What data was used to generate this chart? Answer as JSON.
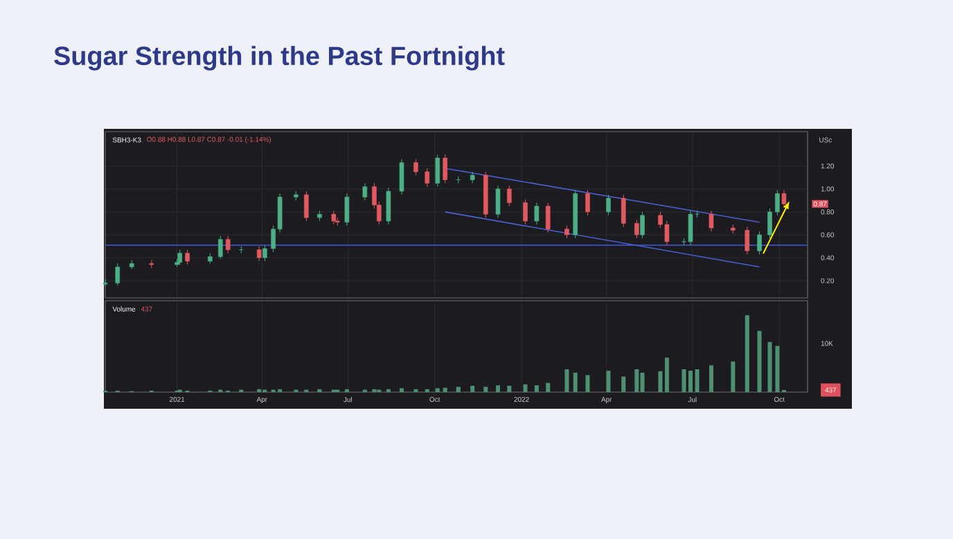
{
  "chart_data": [
    {
      "type": "candlestick",
      "title": "Sugar Strength in the Past Fortnight",
      "x": [
        "2020-10-17",
        "2020-10-30",
        "2020-11-14",
        "2020-12-05",
        "2021-01-01",
        "2021-01-04",
        "2021-01-12",
        "2021-02-05",
        "2021-02-16",
        "2021-02-24",
        "2021-03-10",
        "2021-03-29",
        "2021-04-04",
        "2021-04-13",
        "2021-04-20",
        "2021-05-07",
        "2021-05-18",
        "2021-06-01",
        "2021-06-16",
        "2021-06-20",
        "2021-06-30",
        "2021-07-19",
        "2021-07-29",
        "2021-08-03",
        "2021-08-13",
        "2021-08-27",
        "2021-09-11",
        "2021-09-23",
        "2021-10-04",
        "2021-10-12",
        "2021-10-26",
        "2021-11-10",
        "2021-11-24",
        "2021-12-07",
        "2021-12-19",
        "2022-01-05",
        "2022-01-17",
        "2022-01-29",
        "2022-02-18",
        "2022-02-27",
        "2022-03-12",
        "2022-04-03",
        "2022-04-19",
        "2022-05-03",
        "2022-05-09",
        "2022-05-28",
        "2022-06-04",
        "2022-06-22",
        "2022-06-29",
        "2022-07-06",
        "2022-07-21",
        "2022-08-13",
        "2022-08-28",
        "2022-09-10",
        "2022-09-21",
        "2022-09-29",
        "2022-10-06"
      ],
      "ohlc": [
        [
          0.17,
          0.21,
          0.15,
          0.18
        ],
        [
          0.18,
          0.35,
          0.16,
          0.32
        ],
        [
          0.32,
          0.38,
          0.3,
          0.35
        ],
        [
          0.35,
          0.38,
          0.31,
          0.34
        ],
        [
          0.34,
          0.39,
          0.32,
          0.36
        ],
        [
          0.36,
          0.47,
          0.34,
          0.44
        ],
        [
          0.44,
          0.47,
          0.34,
          0.37
        ],
        [
          0.37,
          0.44,
          0.35,
          0.41
        ],
        [
          0.41,
          0.59,
          0.39,
          0.56
        ],
        [
          0.56,
          0.59,
          0.44,
          0.47
        ],
        [
          0.47,
          0.5,
          0.44,
          0.47
        ],
        [
          0.47,
          0.5,
          0.37,
          0.4
        ],
        [
          0.4,
          0.51,
          0.37,
          0.48
        ],
        [
          0.48,
          0.68,
          0.45,
          0.65
        ],
        [
          0.65,
          0.96,
          0.62,
          0.93
        ],
        [
          0.93,
          0.98,
          0.9,
          0.95
        ],
        [
          0.95,
          0.98,
          0.72,
          0.75
        ],
        [
          0.75,
          0.81,
          0.72,
          0.78
        ],
        [
          0.78,
          0.81,
          0.69,
          0.72
        ],
        [
          0.72,
          0.75,
          0.68,
          0.71
        ],
        [
          0.71,
          0.96,
          0.68,
          0.93
        ],
        [
          0.93,
          1.05,
          0.9,
          1.02
        ],
        [
          1.02,
          1.05,
          0.83,
          0.86
        ],
        [
          0.86,
          0.89,
          0.69,
          0.72
        ],
        [
          0.72,
          1.01,
          0.69,
          0.98
        ],
        [
          0.98,
          1.26,
          0.95,
          1.23
        ],
        [
          1.23,
          1.26,
          1.12,
          1.15
        ],
        [
          1.15,
          1.18,
          1.02,
          1.05
        ],
        [
          1.05,
          1.3,
          1.02,
          1.27
        ],
        [
          1.27,
          1.3,
          1.05,
          1.08
        ],
        [
          1.08,
          1.11,
          1.05,
          1.08
        ],
        [
          1.08,
          1.15,
          1.05,
          1.12
        ],
        [
          1.12,
          1.15,
          0.75,
          0.78
        ],
        [
          0.78,
          1.03,
          0.75,
          1.0
        ],
        [
          1.0,
          1.03,
          0.85,
          0.88
        ],
        [
          0.88,
          0.91,
          0.69,
          0.72
        ],
        [
          0.72,
          0.88,
          0.69,
          0.85
        ],
        [
          0.85,
          0.88,
          0.62,
          0.65
        ],
        [
          0.65,
          0.68,
          0.57,
          0.6
        ],
        [
          0.6,
          0.99,
          0.57,
          0.96
        ],
        [
          0.96,
          0.99,
          0.77,
          0.8
        ],
        [
          0.8,
          0.95,
          0.77,
          0.92
        ],
        [
          0.92,
          0.95,
          0.67,
          0.7
        ],
        [
          0.7,
          0.73,
          0.57,
          0.6
        ],
        [
          0.6,
          0.8,
          0.57,
          0.77
        ],
        [
          0.77,
          0.8,
          0.66,
          0.69
        ],
        [
          0.69,
          0.72,
          0.51,
          0.54
        ],
        [
          0.54,
          0.57,
          0.51,
          0.54
        ],
        [
          0.54,
          0.81,
          0.51,
          0.78
        ],
        [
          0.78,
          0.81,
          0.75,
          0.78
        ],
        [
          0.78,
          0.81,
          0.63,
          0.66
        ],
        [
          0.66,
          0.69,
          0.61,
          0.64
        ],
        [
          0.64,
          0.67,
          0.43,
          0.46
        ],
        [
          0.46,
          0.63,
          0.43,
          0.6
        ],
        [
          0.6,
          0.83,
          0.57,
          0.8
        ],
        [
          0.8,
          0.99,
          0.77,
          0.96
        ],
        [
          0.96,
          0.99,
          0.84,
          0.87
        ]
      ],
      "series": [
        {
          "type": "line",
          "x": [
            "2021-10-12",
            "2022-09-10"
          ],
          "values": [
            1.18,
            0.71
          ],
          "color": "#4a5fd0"
        },
        {
          "type": "line",
          "x": [
            "2021-10-12",
            "2022-09-10"
          ],
          "values": [
            0.8,
            0.32
          ],
          "color": "#4a5fd0"
        }
      ],
      "ref_lines": [
        {
          "axis": "y",
          "value": 0.51,
          "color": "#3b4fc0"
        }
      ],
      "xlim": [
        "2020-10-17",
        "2022-10-31"
      ],
      "xticks": [
        {
          "value": "2021-01-01",
          "label": null
        },
        {
          "value": "2021-04-01",
          "label": null
        },
        {
          "value": "2021-07-01",
          "label": null
        },
        {
          "value": "2021-10-01",
          "label": null
        },
        {
          "value": "2022-01-01",
          "label": null
        },
        {
          "value": "2022-04-01",
          "label": null
        },
        {
          "value": "2022-07-01",
          "label": null
        },
        {
          "value": "2022-10-01",
          "label": null
        }
      ],
      "ylim": [
        0.05,
        1.5
      ],
      "yticks": [
        {
          "value": 0.2,
          "label": "0.20"
        },
        {
          "value": 0.4,
          "label": "0.40"
        },
        {
          "value": 0.6,
          "label": "0.60"
        },
        {
          "value": 0.8,
          "label": "0.80"
        },
        {
          "value": 1.0,
          "label": "1.00"
        },
        {
          "value": 1.2,
          "label": "1.20"
        }
      ],
      "tick_labels": "y",
      "grid": true,
      "annotations": [
        "SBH3-K3",
        "O0.88 H0.88 L0.87 C0.87 -0.01 (-1.14%)",
        "USc",
        "0.87"
      ]
    },
    {
      "type": "bar",
      "color": "#4f8f72",
      "x": [
        "2020-10-17",
        "2020-10-30",
        "2020-11-14",
        "2020-12-05",
        "2021-01-01",
        "2021-01-04",
        "2021-01-12",
        "2021-02-05",
        "2021-02-16",
        "2021-02-24",
        "2021-03-10",
        "2021-03-29",
        "2021-04-04",
        "2021-04-13",
        "2021-04-20",
        "2021-05-07",
        "2021-05-18",
        "2021-06-01",
        "2021-06-16",
        "2021-06-20",
        "2021-06-30",
        "2021-07-19",
        "2021-07-29",
        "2021-08-03",
        "2021-08-13",
        "2021-08-27",
        "2021-09-11",
        "2021-09-23",
        "2021-10-04",
        "2021-10-12",
        "2021-10-26",
        "2021-11-10",
        "2021-11-24",
        "2021-12-07",
        "2021-12-19",
        "2022-01-05",
        "2022-01-17",
        "2022-01-29",
        "2022-02-18",
        "2022-02-27",
        "2022-03-12",
        "2022-04-03",
        "2022-04-19",
        "2022-05-03",
        "2022-05-09",
        "2022-05-28",
        "2022-06-04",
        "2022-06-22",
        "2022-06-29",
        "2022-07-06",
        "2022-07-21",
        "2022-08-13",
        "2022-08-28",
        "2022-09-10",
        "2022-09-21",
        "2022-09-29",
        "2022-10-06"
      ],
      "values": [
        300,
        300,
        200,
        300,
        300,
        500,
        300,
        300,
        500,
        300,
        500,
        600,
        500,
        500,
        600,
        500,
        500,
        600,
        500,
        500,
        600,
        500,
        600,
        500,
        600,
        800,
        600,
        600,
        800,
        900,
        1100,
        1300,
        1100,
        1400,
        1300,
        1600,
        1400,
        1900,
        4700,
        4000,
        3500,
        4400,
        3200,
        4700,
        4000,
        4300,
        7100,
        4700,
        4400,
        4700,
        5500,
        6300,
        15800,
        12600,
        10300,
        9500,
        437
      ],
      "ylim": [
        0,
        18800
      ],
      "yticks": [
        {
          "value": 437,
          "label": "437"
        },
        {
          "value": 10000,
          "label": "10K"
        }
      ],
      "xlim": [
        "2020-10-17",
        "2022-10-31"
      ],
      "xticks": [
        {
          "value": "2021-01-01",
          "label": "2021"
        },
        {
          "value": "2021-04-01",
          "label": "Apr"
        },
        {
          "value": "2021-07-01",
          "label": "Jul"
        },
        {
          "value": "2021-10-01",
          "label": "Oct"
        },
        {
          "value": "2022-01-01",
          "label": "2022"
        },
        {
          "value": "2022-04-01",
          "label": "Apr"
        },
        {
          "value": "2022-07-01",
          "label": "Jul"
        },
        {
          "value": "2022-10-01",
          "label": "Oct"
        }
      ],
      "grid": "x",
      "annotations": [
        "Volume",
        "437"
      ]
    }
  ]
}
